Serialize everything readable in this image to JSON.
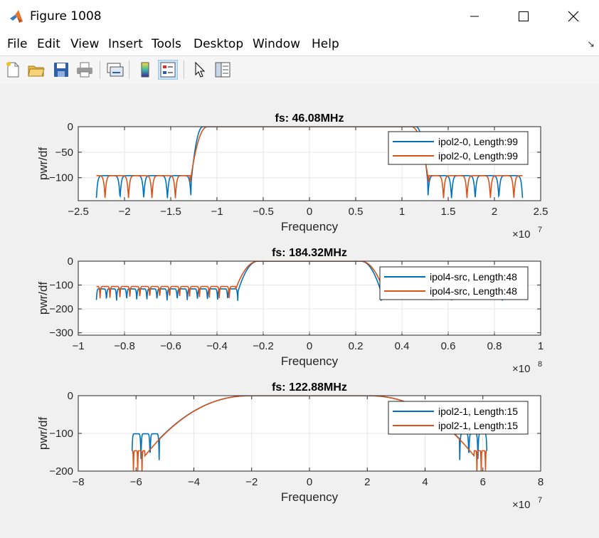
{
  "window": {
    "title": "Figure 1008"
  },
  "menu": [
    "File",
    "Edit",
    "View",
    "Insert",
    "Tools",
    "Desktop",
    "Window",
    "Help"
  ],
  "toolbar": [
    "new-figure-icon",
    "open-file-icon",
    "save-icon",
    "print-icon",
    "link-plot-icon",
    "colorbar-icon",
    "legend-icon",
    "pointer-icon",
    "property-inspector-icon"
  ],
  "colors": {
    "series1": "#0072BD",
    "series2": "#D95319"
  },
  "chart_data": [
    {
      "type": "line",
      "title": "fs: 46.08MHz",
      "xlabel": "Frequency",
      "ylabel": "pwr/df",
      "xlim": [
        -25000000,
        25000000
      ],
      "ylim": [
        -145,
        0
      ],
      "xticks": [
        -2.5,
        -2,
        -1.5,
        -1,
        -0.5,
        0,
        0.5,
        1,
        1.5,
        2,
        2.5
      ],
      "yticks": [
        0,
        -50,
        -100
      ],
      "exponent": "×10",
      "exponent_power": "7",
      "legend_position": "top-right",
      "grid": true,
      "series": [
        {
          "name": "ipol2-0, Length:99",
          "passband_edge": 11500000,
          "stopband_edge": 12800000,
          "extent": 23040000,
          "stopband_level": -100
        },
        {
          "name": "ipol2-0, Length:99",
          "passband_edge": 11000000,
          "stopband_edge": 12900000,
          "extent": 23040000,
          "stopband_level": -100
        }
      ]
    },
    {
      "type": "line",
      "title": "fs: 184.32MHz",
      "xlabel": "Frequency",
      "ylabel": "pwr/df",
      "xlim": [
        -100000000,
        100000000
      ],
      "ylim": [
        -310,
        0
      ],
      "xticks": [
        -1,
        -0.8,
        -0.6,
        -0.4,
        -0.2,
        0,
        0.2,
        0.4,
        0.6,
        0.8,
        1
      ],
      "yticks": [
        0,
        -100,
        -200,
        -300
      ],
      "exponent": "×10",
      "exponent_power": "8",
      "legend_position": "top-right",
      "grid": true,
      "series": [
        {
          "name": "ipol4-src, Length:48",
          "passband_edge": 22000000,
          "stopband_edge": 31000000,
          "extent": 92160000,
          "stopband_level": -120
        },
        {
          "name": "ipol4-src, Length:48",
          "passband_edge": 22000000,
          "stopband_edge": 32000000,
          "extent": 92160000,
          "stopband_level": -110
        }
      ]
    },
    {
      "type": "line",
      "title": "fs: 122.88MHz",
      "xlabel": "Frequency",
      "ylabel": "pwr/df",
      "xlim": [
        -80000000,
        80000000
      ],
      "ylim": [
        -200,
        0
      ],
      "xticks": [
        -8,
        -6,
        -4,
        -2,
        0,
        2,
        4,
        6,
        8
      ],
      "yticks": [
        0,
        -100,
        -200
      ],
      "exponent": "×10",
      "exponent_power": "7",
      "legend_position": "top-right",
      "grid": true,
      "series": [
        {
          "name": "ipol2-1, Length:15",
          "passband_edge": 20000000,
          "stopband_edge": 52000000,
          "extent": 61440000,
          "stopband_level": -105
        },
        {
          "name": "ipol2-1, Length:15",
          "passband_edge": 20000000,
          "stopband_edge": 57000000,
          "extent": 61440000,
          "stopband_level": -150
        }
      ]
    }
  ]
}
